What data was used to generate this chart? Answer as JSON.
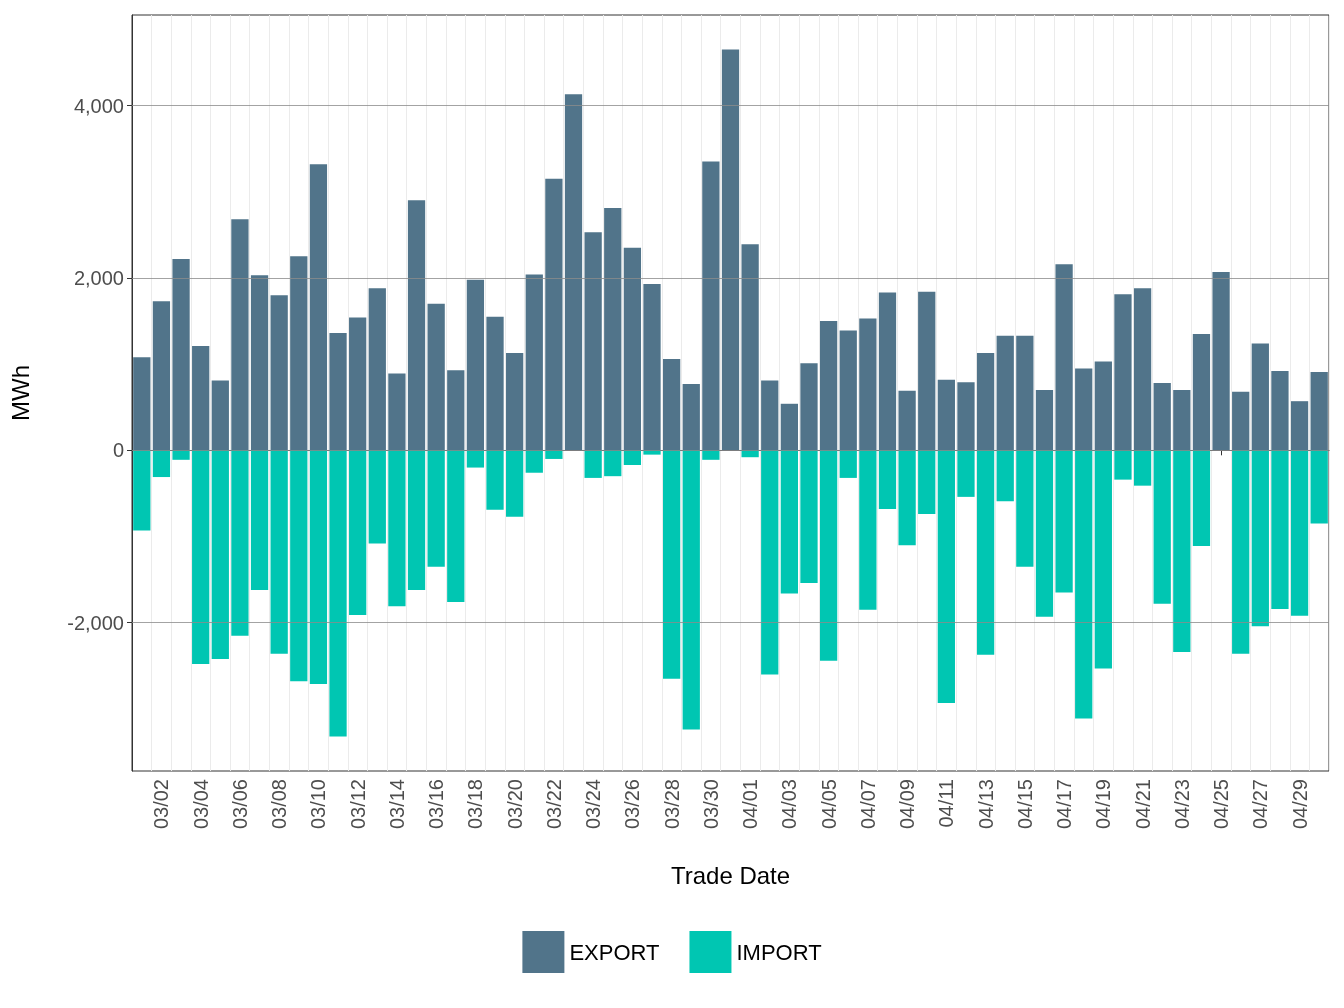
{
  "chart_data": {
    "type": "bar",
    "xlabel": "Trade Date",
    "ylabel": "MWh",
    "stacked": true,
    "grid": true,
    "legend": "bottom",
    "categories": [
      null,
      "03/02",
      null,
      "03/04",
      null,
      "03/06",
      null,
      "03/08",
      null,
      "03/10",
      null,
      "03/12",
      null,
      "03/14",
      null,
      "03/16",
      null,
      "03/18",
      null,
      "03/20",
      null,
      "03/22",
      null,
      "03/24",
      null,
      "03/26",
      null,
      "03/28",
      null,
      "03/30",
      null,
      "04/01",
      null,
      "04/03",
      null,
      "04/05",
      null,
      "04/07",
      null,
      "04/09",
      null,
      "04/11",
      null,
      "04/13",
      null,
      "04/15",
      null,
      "04/17",
      null,
      "04/19",
      null,
      "04/21",
      null,
      "04/23",
      null,
      "04/25",
      null,
      "04/27",
      null,
      "04/29",
      null
    ],
    "ylim": [
      -3720,
      5050
    ],
    "yticks": [
      {
        "value": -2000,
        "label": "-2,000"
      },
      0,
      {
        "value": 2000,
        "label": "2,000"
      },
      {
        "value": 4000,
        "label": "4,000"
      }
    ],
    "series": [
      {
        "name": "EXPORT",
        "color": "#51748a",
        "values": [
          1080,
          1730,
          2220,
          1210,
          810,
          2680,
          2030,
          1800,
          2250,
          3320,
          1360,
          1540,
          1880,
          890,
          2900,
          1700,
          930,
          1980,
          1550,
          1130,
          2040,
          3150,
          4130,
          2530,
          2810,
          2350,
          1930,
          1060,
          770,
          3350,
          4650,
          2390,
          810,
          540,
          1010,
          1500,
          1390,
          1530,
          1830,
          690,
          1840,
          820,
          790,
          1130,
          1330,
          1330,
          700,
          2160,
          950,
          1030,
          1810,
          1880,
          780,
          700,
          1350,
          2070,
          680,
          1240,
          920,
          570,
          910
        ]
      },
      {
        "name": "IMPORT",
        "color": "#00c6b2",
        "values": [
          -930,
          -310,
          -110,
          -2480,
          -2420,
          -2150,
          -1620,
          -2360,
          -2680,
          -2710,
          -3320,
          -1910,
          -1080,
          -1810,
          -1620,
          -1350,
          -1760,
          -200,
          -690,
          -770,
          -260,
          -100,
          0,
          -320,
          -300,
          -170,
          -50,
          -2650,
          -3240,
          -110,
          0,
          -80,
          -2600,
          -1660,
          -1540,
          -2440,
          -320,
          -1850,
          -680,
          -1100,
          -740,
          -2930,
          -540,
          -2370,
          -590,
          -1350,
          -1930,
          -1650,
          -3110,
          -2530,
          -340,
          -410,
          -1780,
          -2340,
          -1110,
          0,
          -2360,
          -2040,
          -1840,
          -1920,
          -850
        ]
      }
    ]
  }
}
